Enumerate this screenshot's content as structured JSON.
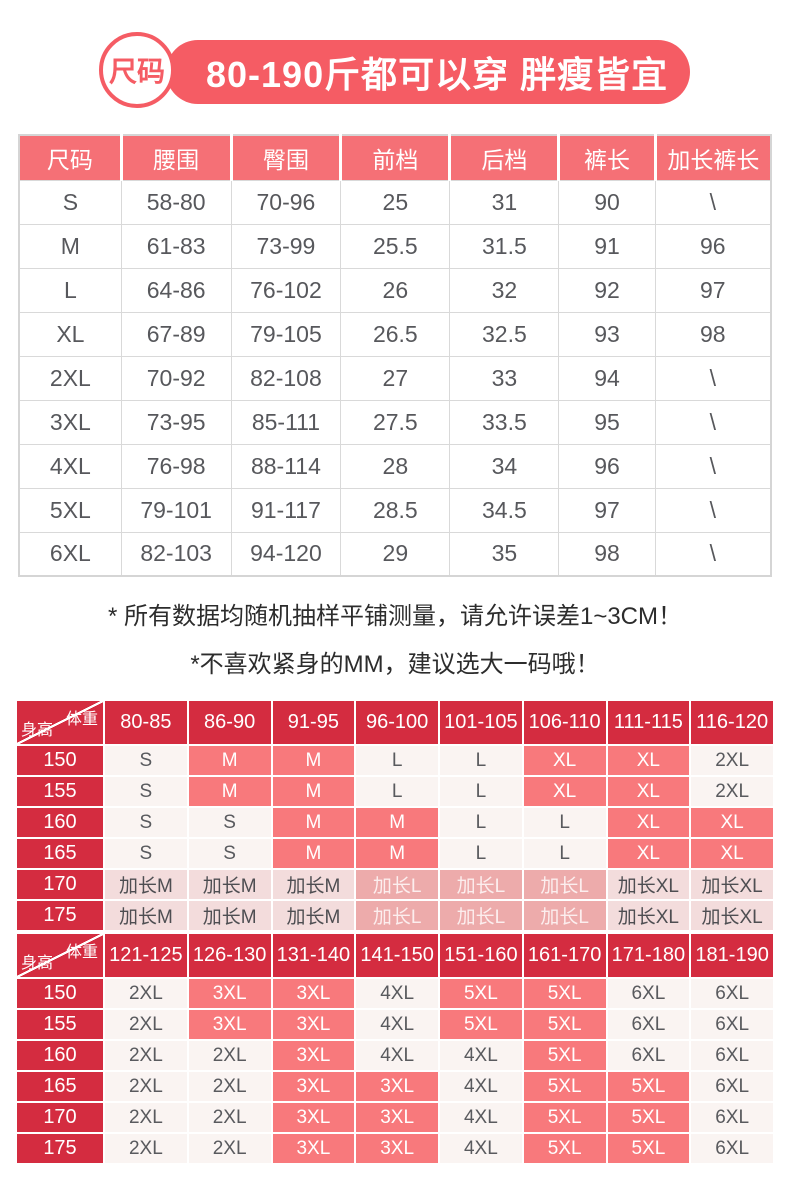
{
  "colors": {
    "coral": "#f55c64",
    "coralLight": "#f57076",
    "crimson": "#d42c40",
    "pink": "#f8797c",
    "lightCell": "#faf4f2",
    "softLight": "#f3dcdc",
    "softDark": "#edabab"
  },
  "banner": {
    "badge": "尺码",
    "title": "80-190斤都可以穿 胖瘦皆宜"
  },
  "size_table": {
    "headers": [
      "尺码",
      "腰围",
      "臀围",
      "前档",
      "后档",
      "裤长",
      "加长裤长"
    ],
    "rows": [
      [
        "S",
        "58-80",
        "70-96",
        "25",
        "31",
        "90",
        "\\"
      ],
      [
        "M",
        "61-83",
        "73-99",
        "25.5",
        "31.5",
        "91",
        "96"
      ],
      [
        "L",
        "64-86",
        "76-102",
        "26",
        "32",
        "92",
        "97"
      ],
      [
        "XL",
        "67-89",
        "79-105",
        "26.5",
        "32.5",
        "93",
        "98"
      ],
      [
        "2XL",
        "70-92",
        "82-108",
        "27",
        "33",
        "94",
        "\\"
      ],
      [
        "3XL",
        "73-95",
        "85-111",
        "27.5",
        "33.5",
        "95",
        "\\"
      ],
      [
        "4XL",
        "76-98",
        "88-114",
        "28",
        "34",
        "96",
        "\\"
      ],
      [
        "5XL",
        "79-101",
        "91-117",
        "28.5",
        "34.5",
        "97",
        "\\"
      ],
      [
        "6XL",
        "82-103",
        "94-120",
        "29",
        "35",
        "98",
        "\\"
      ]
    ]
  },
  "notes": [
    "* 所有数据均随机抽样平铺测量，请允许误差1~3CM！",
    "*不喜欢紧身的MM，建议选大一码哦！"
  ],
  "matrices": [
    {
      "corner": {
        "top": "体重",
        "bottom": "身高"
      },
      "weight_headers": [
        "80-85",
        "86-90",
        "91-95",
        "96-100",
        "101-105",
        "106-110",
        "111-115",
        "116-120"
      ],
      "rows": [
        {
          "height": "150",
          "cells": [
            {
              "t": "S",
              "v": "light"
            },
            {
              "t": "M",
              "v": "pink"
            },
            {
              "t": "M",
              "v": "pink"
            },
            {
              "t": "L",
              "v": "light"
            },
            {
              "t": "L",
              "v": "light"
            },
            {
              "t": "XL",
              "v": "pink"
            },
            {
              "t": "XL",
              "v": "pink"
            },
            {
              "t": "2XL",
              "v": "light"
            }
          ]
        },
        {
          "height": "155",
          "cells": [
            {
              "t": "S",
              "v": "light"
            },
            {
              "t": "M",
              "v": "pink"
            },
            {
              "t": "M",
              "v": "pink"
            },
            {
              "t": "L",
              "v": "light"
            },
            {
              "t": "L",
              "v": "light"
            },
            {
              "t": "XL",
              "v": "pink"
            },
            {
              "t": "XL",
              "v": "pink"
            },
            {
              "t": "2XL",
              "v": "light"
            }
          ]
        },
        {
          "height": "160",
          "cells": [
            {
              "t": "S",
              "v": "light"
            },
            {
              "t": "S",
              "v": "light"
            },
            {
              "t": "M",
              "v": "pink"
            },
            {
              "t": "M",
              "v": "pink"
            },
            {
              "t": "L",
              "v": "light"
            },
            {
              "t": "L",
              "v": "light"
            },
            {
              "t": "XL",
              "v": "pink"
            },
            {
              "t": "XL",
              "v": "pink"
            }
          ]
        },
        {
          "height": "165",
          "cells": [
            {
              "t": "S",
              "v": "light"
            },
            {
              "t": "S",
              "v": "light"
            },
            {
              "t": "M",
              "v": "pink"
            },
            {
              "t": "M",
              "v": "pink"
            },
            {
              "t": "L",
              "v": "light"
            },
            {
              "t": "L",
              "v": "light"
            },
            {
              "t": "XL",
              "v": "pink"
            },
            {
              "t": "XL",
              "v": "pink"
            }
          ]
        },
        {
          "height": "170",
          "cells": [
            {
              "t": "加长M",
              "v": "softlight"
            },
            {
              "t": "加长M",
              "v": "softlight"
            },
            {
              "t": "加长M",
              "v": "softlight"
            },
            {
              "t": "加长L",
              "v": "softdark"
            },
            {
              "t": "加长L",
              "v": "softdark"
            },
            {
              "t": "加长L",
              "v": "softdark"
            },
            {
              "t": "加长XL",
              "v": "softlight"
            },
            {
              "t": "加长XL",
              "v": "softlight"
            }
          ]
        },
        {
          "height": "175",
          "cells": [
            {
              "t": "加长M",
              "v": "softlight"
            },
            {
              "t": "加长M",
              "v": "softlight"
            },
            {
              "t": "加长M",
              "v": "softlight"
            },
            {
              "t": "加长L",
              "v": "softdark"
            },
            {
              "t": "加长L",
              "v": "softdark"
            },
            {
              "t": "加长L",
              "v": "softdark"
            },
            {
              "t": "加长XL",
              "v": "softlight"
            },
            {
              "t": "加长XL",
              "v": "softlight"
            }
          ]
        }
      ]
    },
    {
      "corner": {
        "top": "体重",
        "bottom": "身高"
      },
      "weight_headers": [
        "121-125",
        "126-130",
        "131-140",
        "141-150",
        "151-160",
        "161-170",
        "171-180",
        "181-190"
      ],
      "rows": [
        {
          "height": "150",
          "cells": [
            {
              "t": "2XL",
              "v": "light"
            },
            {
              "t": "3XL",
              "v": "pink"
            },
            {
              "t": "3XL",
              "v": "pink"
            },
            {
              "t": "4XL",
              "v": "light"
            },
            {
              "t": "5XL",
              "v": "pink"
            },
            {
              "t": "5XL",
              "v": "pink"
            },
            {
              "t": "6XL",
              "v": "light"
            },
            {
              "t": "6XL",
              "v": "light"
            }
          ]
        },
        {
          "height": "155",
          "cells": [
            {
              "t": "2XL",
              "v": "light"
            },
            {
              "t": "3XL",
              "v": "pink"
            },
            {
              "t": "3XL",
              "v": "pink"
            },
            {
              "t": "4XL",
              "v": "light"
            },
            {
              "t": "5XL",
              "v": "pink"
            },
            {
              "t": "5XL",
              "v": "pink"
            },
            {
              "t": "6XL",
              "v": "light"
            },
            {
              "t": "6XL",
              "v": "light"
            }
          ]
        },
        {
          "height": "160",
          "cells": [
            {
              "t": "2XL",
              "v": "light"
            },
            {
              "t": "2XL",
              "v": "light"
            },
            {
              "t": "3XL",
              "v": "pink"
            },
            {
              "t": "4XL",
              "v": "light"
            },
            {
              "t": "4XL",
              "v": "light"
            },
            {
              "t": "5XL",
              "v": "pink"
            },
            {
              "t": "6XL",
              "v": "light"
            },
            {
              "t": "6XL",
              "v": "light"
            }
          ]
        },
        {
          "height": "165",
          "cells": [
            {
              "t": "2XL",
              "v": "light"
            },
            {
              "t": "2XL",
              "v": "light"
            },
            {
              "t": "3XL",
              "v": "pink"
            },
            {
              "t": "3XL",
              "v": "pink"
            },
            {
              "t": "4XL",
              "v": "light"
            },
            {
              "t": "5XL",
              "v": "pink"
            },
            {
              "t": "5XL",
              "v": "pink"
            },
            {
              "t": "6XL",
              "v": "light"
            }
          ]
        },
        {
          "height": "170",
          "cells": [
            {
              "t": "2XL",
              "v": "light"
            },
            {
              "t": "2XL",
              "v": "light"
            },
            {
              "t": "3XL",
              "v": "pink"
            },
            {
              "t": "3XL",
              "v": "pink"
            },
            {
              "t": "4XL",
              "v": "light"
            },
            {
              "t": "5XL",
              "v": "pink"
            },
            {
              "t": "5XL",
              "v": "pink"
            },
            {
              "t": "6XL",
              "v": "light"
            }
          ]
        },
        {
          "height": "175",
          "cells": [
            {
              "t": "2XL",
              "v": "light"
            },
            {
              "t": "2XL",
              "v": "light"
            },
            {
              "t": "3XL",
              "v": "pink"
            },
            {
              "t": "3XL",
              "v": "pink"
            },
            {
              "t": "4XL",
              "v": "light"
            },
            {
              "t": "5XL",
              "v": "pink"
            },
            {
              "t": "5XL",
              "v": "pink"
            },
            {
              "t": "6XL",
              "v": "light"
            }
          ]
        }
      ]
    }
  ]
}
